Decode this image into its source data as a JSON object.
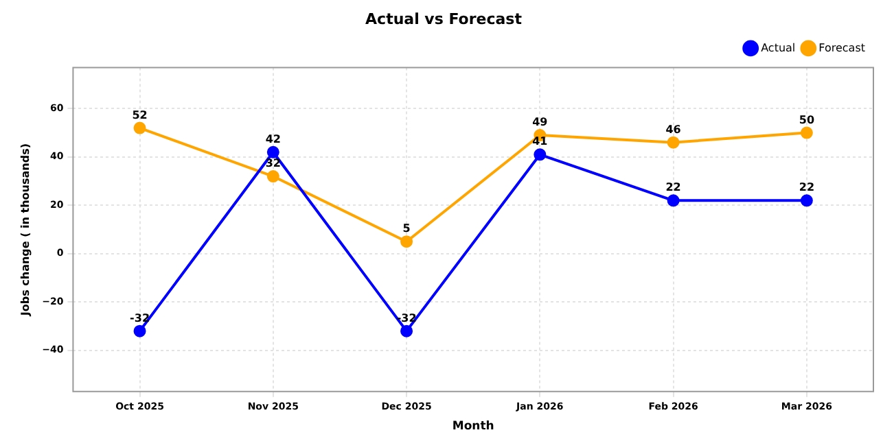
{
  "chart_data": {
    "type": "line",
    "title": "Actual vs Forecast",
    "xlabel": "Month",
    "ylabel": "Jobs change ( in thousands)",
    "categories": [
      "Oct 2025",
      "Nov 2025",
      "Dec 2025",
      "Jan 2026",
      "Feb 2026",
      "Mar 2026"
    ],
    "series": [
      {
        "name": "Actual",
        "color": "#0000ff",
        "values": [
          -32,
          42,
          -32,
          41,
          22,
          22
        ]
      },
      {
        "name": "Forecast",
        "color": "#ffa500",
        "values": [
          52,
          32,
          5,
          49,
          46,
          50
        ]
      }
    ],
    "ylim": [
      -57,
      77
    ],
    "yticks": [
      -40,
      -20,
      0,
      20,
      40,
      60
    ],
    "grid": true,
    "legend": "top right",
    "marker": "circle",
    "line_style": "solid",
    "data_labels": true
  }
}
